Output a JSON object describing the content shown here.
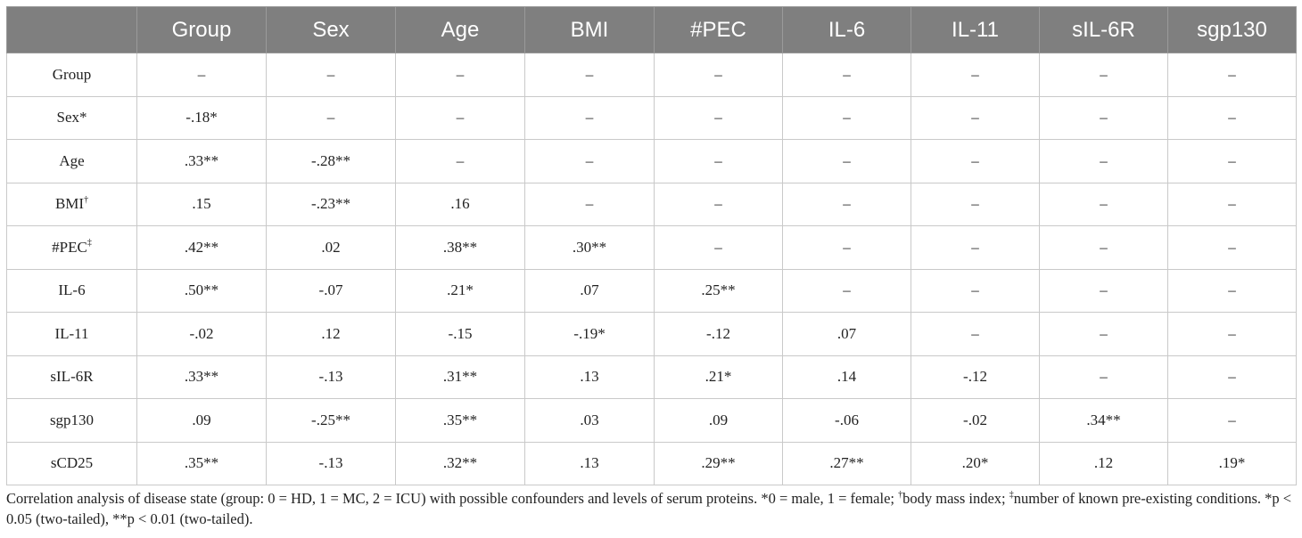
{
  "table": {
    "headers": [
      "",
      "Group",
      "Sex",
      "Age",
      "BMI",
      "#PEC",
      "IL-6",
      "IL-11",
      "sIL-6R",
      "sgp130"
    ],
    "rows": [
      {
        "label": "Group",
        "sup": "",
        "cells": [
          "–",
          "–",
          "–",
          "–",
          "–",
          "–",
          "–",
          "–",
          "–"
        ]
      },
      {
        "label": "Sex*",
        "sup": "",
        "cells": [
          "-.18*",
          "–",
          "–",
          "–",
          "–",
          "–",
          "–",
          "–",
          "–"
        ]
      },
      {
        "label": "Age",
        "sup": "",
        "cells": [
          ".33**",
          "-.28**",
          "–",
          "–",
          "–",
          "–",
          "–",
          "–",
          "–"
        ]
      },
      {
        "label": "BMI",
        "sup": "†",
        "cells": [
          ".15",
          "-.23**",
          ".16",
          "–",
          "–",
          "–",
          "–",
          "–",
          "–"
        ]
      },
      {
        "label": "#PEC",
        "sup": "‡",
        "cells": [
          ".42**",
          ".02",
          ".38**",
          ".30**",
          "–",
          "–",
          "–",
          "–",
          "–"
        ]
      },
      {
        "label": "IL-6",
        "sup": "",
        "cells": [
          ".50**",
          "-.07",
          ".21*",
          ".07",
          ".25**",
          "–",
          "–",
          "–",
          "–"
        ]
      },
      {
        "label": "IL-11",
        "sup": "",
        "cells": [
          "-.02",
          ".12",
          "-.15",
          "-.19*",
          "-.12",
          ".07",
          "–",
          "–",
          "–"
        ]
      },
      {
        "label": "sIL-6R",
        "sup": "",
        "cells": [
          ".33**",
          "-.13",
          ".31**",
          ".13",
          ".21*",
          ".14",
          "-.12",
          "–",
          "–"
        ]
      },
      {
        "label": "sgp130",
        "sup": "",
        "cells": [
          ".09",
          "-.25**",
          ".35**",
          ".03",
          ".09",
          "-.06",
          "-.02",
          ".34**",
          "–"
        ]
      },
      {
        "label": "sCD25",
        "sup": "",
        "cells": [
          ".35**",
          "-.13",
          ".32**",
          ".13",
          ".29**",
          ".27**",
          ".20*",
          ".12",
          ".19*"
        ]
      }
    ]
  },
  "caption": {
    "part1": "Correlation analysis of disease state (group: 0 = HD, 1 = MC, 2 = ICU) with possible confounders and levels of serum proteins. *0 = male, 1 = female; ",
    "dagger": "†",
    "part2": "body mass index; ",
    "ddagger": "‡",
    "part3": "number of known pre-existing conditions. *p < 0.05 (two-tailed), **p < 0.01 (two-tailed)."
  },
  "colors": {
    "header_bg": "#7f7f7f",
    "header_text": "#ffffff",
    "grid": "#c9c9c9"
  }
}
